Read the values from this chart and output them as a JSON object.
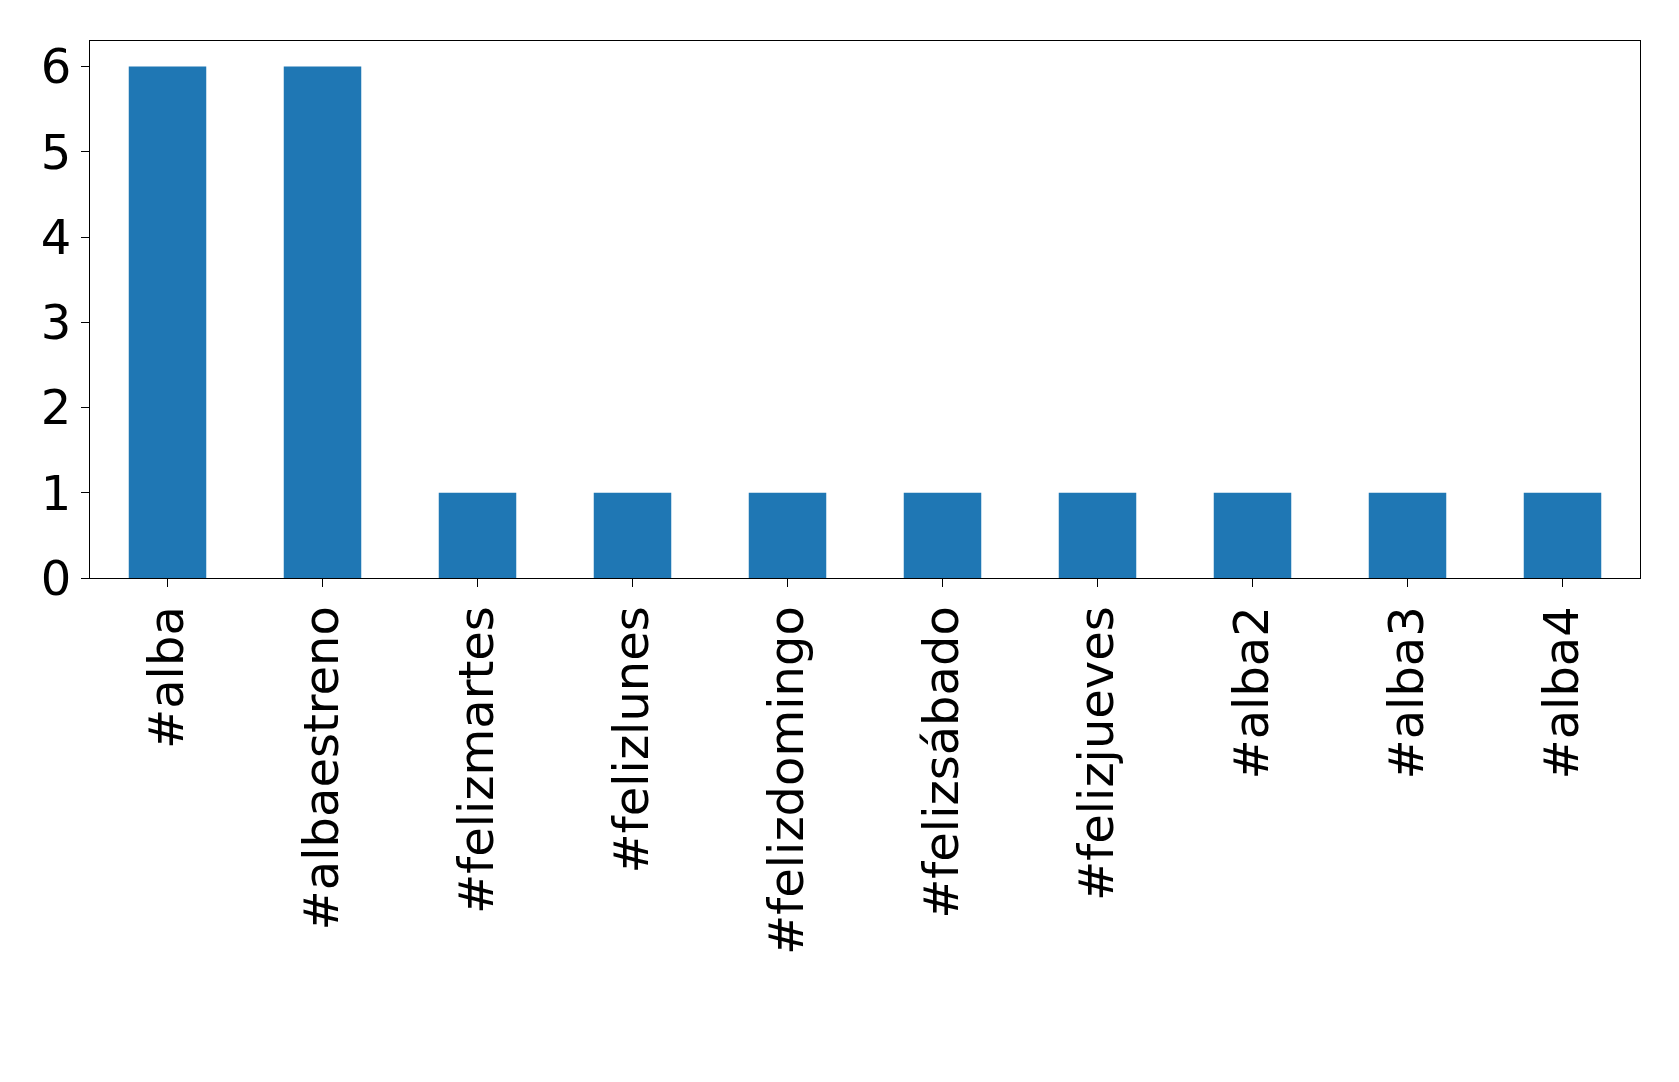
{
  "chart_data": {
    "type": "bar",
    "categories": [
      "#alba",
      "#albaestreno",
      "#felizmartes",
      "#felizlunes",
      "#felizdomingo",
      "#felizsábado",
      "#felizjueves",
      "#alba2",
      "#alba3",
      "#alba4"
    ],
    "values": [
      6,
      6,
      1,
      1,
      1,
      1,
      1,
      1,
      1,
      1
    ],
    "color": "#1f77b4",
    "ylim": [
      0,
      6.3
    ],
    "yticks": [
      0,
      1,
      2,
      3,
      4,
      5,
      6
    ],
    "grid": false,
    "legend": false
  }
}
